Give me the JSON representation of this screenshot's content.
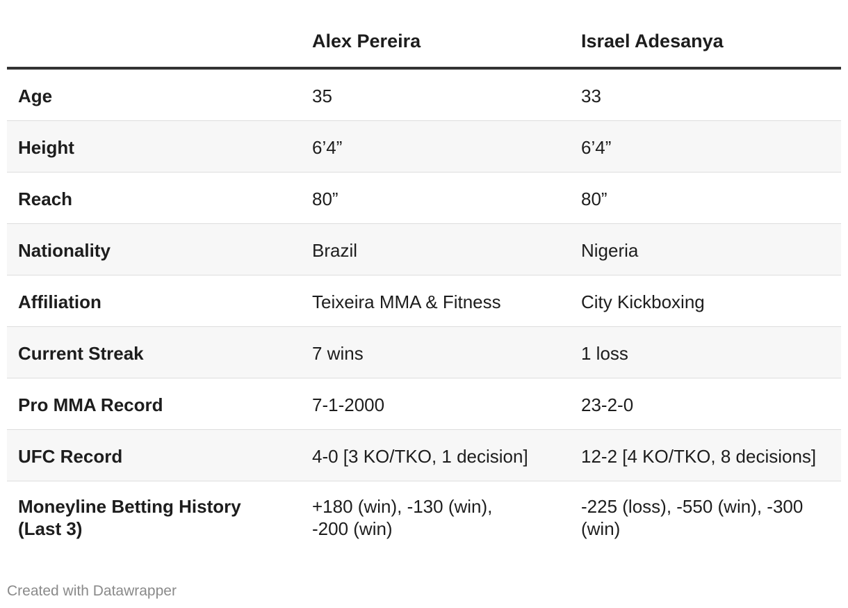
{
  "columns": [
    "",
    "Alex Pereira",
    "Israel Adesanya"
  ],
  "rows": [
    {
      "label": "Age",
      "pereira": "35",
      "adesanya": "33"
    },
    {
      "label": "Height",
      "pereira": "6’4”",
      "adesanya": "6’4”"
    },
    {
      "label": "Reach",
      "pereira": "80”",
      "adesanya": "80”"
    },
    {
      "label": "Nationality",
      "pereira": "Brazil",
      "adesanya": "Nigeria"
    },
    {
      "label": "Affiliation",
      "pereira": "Teixeira MMA & Fitness",
      "adesanya": "City Kickboxing"
    },
    {
      "label": "Current Streak",
      "pereira": "7 wins",
      "adesanya": "1 loss"
    },
    {
      "label": "Pro MMA Record",
      "pereira": "7-1-2000",
      "adesanya": "23-2-0"
    },
    {
      "label": "UFC Record",
      "pereira": "4-0 [3 KO/TKO, 1 decision]",
      "adesanya": "12-2 [4 KO/TKO, 8 decisions]"
    },
    {
      "label": "Moneyline Betting History (Last 3)",
      "pereira": "+180 (win), -130 (win), -200 (win)",
      "adesanya": "-225 (loss), -550 (win), -300 (win)"
    }
  ],
  "footer": "Created with Datawrapper"
}
